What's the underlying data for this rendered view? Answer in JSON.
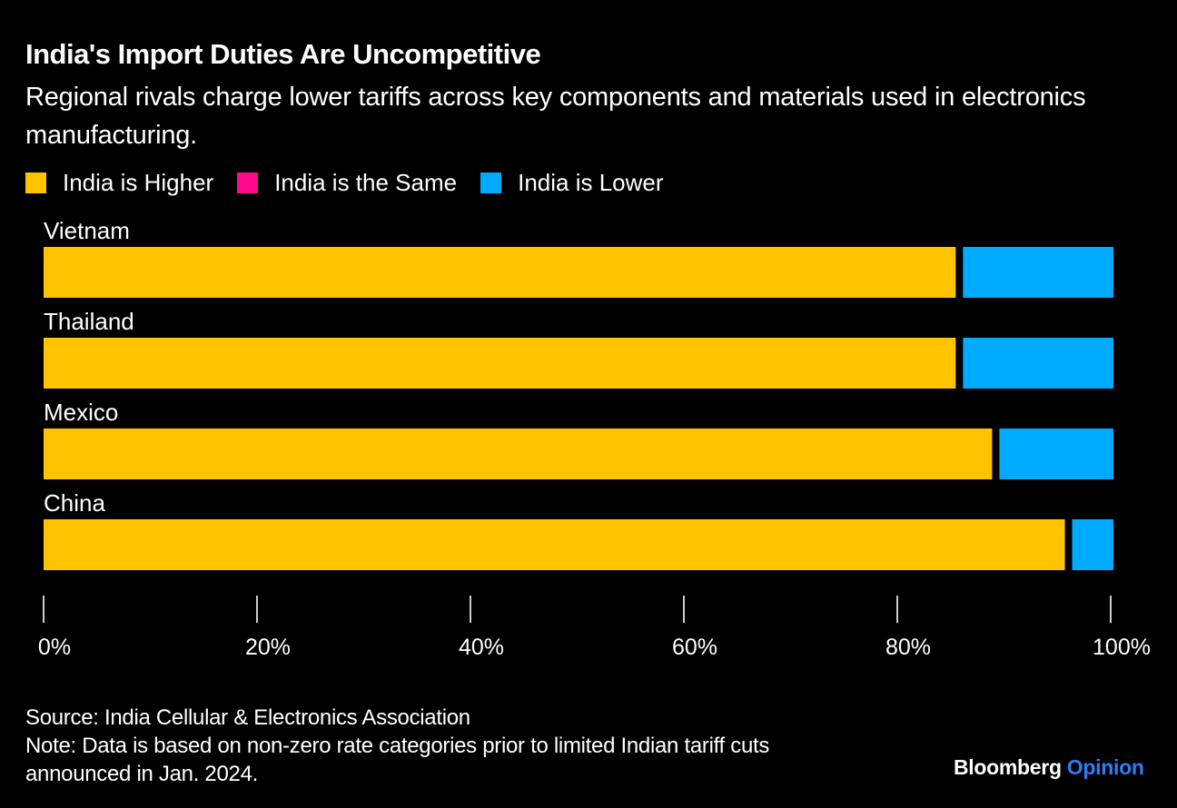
{
  "header": {
    "title": "India's Import Duties Are Uncompetitive",
    "subtitle": "Regional rivals charge lower tariffs across key components and materials used in electronics manufacturing."
  },
  "legend": [
    {
      "label": "India is Higher",
      "color": "#ffc300"
    },
    {
      "label": "India is the Same",
      "color": "#ff0a8c"
    },
    {
      "label": "India is Lower",
      "color": "#00aaff"
    }
  ],
  "chart_data": {
    "type": "bar",
    "orientation": "horizontal",
    "stacked": true,
    "title": "India's Import Duties Are Uncompetitive",
    "subtitle": "Regional rivals charge lower tariffs across key components and materials used in electronics manufacturing.",
    "categories": [
      "Vietnam",
      "Thailand",
      "Mexico",
      "China"
    ],
    "series": [
      {
        "name": "India is Higher",
        "color": "#ffc300",
        "values": [
          85.6,
          85.6,
          89.0,
          95.8
        ]
      },
      {
        "name": "India is the Same",
        "color": "#ff0a8c",
        "values": [
          0,
          0,
          0,
          0
        ]
      },
      {
        "name": "India is Lower",
        "color": "#00aaff",
        "values": [
          14.4,
          14.4,
          11.0,
          4.2
        ]
      }
    ],
    "xlim": [
      0,
      100
    ],
    "xticks": [
      0,
      20,
      40,
      60,
      80,
      100
    ],
    "xtick_labels": [
      "0%",
      "20%",
      "40%",
      "60%",
      "80%",
      "100%"
    ],
    "xlabel": "",
    "ylabel": "",
    "legend_position": "top-left",
    "grid": false
  },
  "footer": {
    "source": "Source: India Cellular & Electronics Association",
    "note_line1": "Note: Data is based on non-zero rate categories prior to limited Indian tariff cuts",
    "note_line2": "announced in Jan. 2024."
  },
  "brand": {
    "name": "Bloomberg",
    "section": "Opinion"
  }
}
